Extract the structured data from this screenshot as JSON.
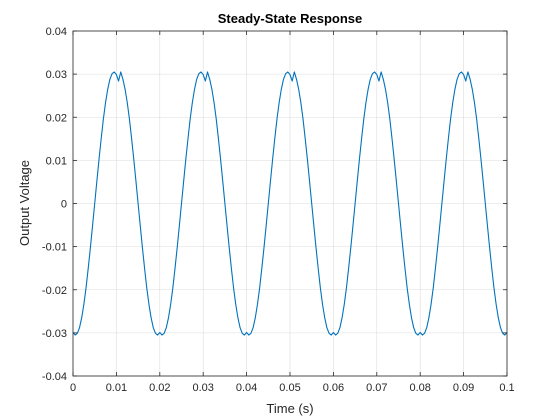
{
  "chart_data": {
    "type": "line",
    "title": "Steady-State Response",
    "xlabel": "Time (s)",
    "ylabel": "Output Voltage",
    "xlim": [
      0,
      0.1
    ],
    "ylim": [
      -0.04,
      0.04
    ],
    "xticks": [
      0,
      0.01,
      0.02,
      0.03,
      0.04,
      0.05,
      0.06,
      0.07,
      0.08,
      0.09,
      0.1
    ],
    "xtick_labels": [
      "0",
      "0.01",
      "0.02",
      "0.03",
      "0.04",
      "0.05",
      "0.06",
      "0.07",
      "0.08",
      "0.09",
      "0.1"
    ],
    "yticks": [
      -0.04,
      -0.03,
      -0.02,
      -0.01,
      0,
      0.01,
      0.02,
      0.03,
      0.04
    ],
    "ytick_labels": [
      "-0.04",
      "-0.03",
      "-0.02",
      "-0.01",
      "0",
      "0.01",
      "0.02",
      "0.03",
      "0.04"
    ],
    "grid": true,
    "series": [
      {
        "color": "#0072BD",
        "x": [
          0,
          0.0005,
          0.001,
          0.0015,
          0.002,
          0.0025,
          0.003,
          0.0035,
          0.004,
          0.0045,
          0.005,
          0.0055,
          0.006,
          0.0065,
          0.007,
          0.0075,
          0.008,
          0.0085,
          0.009,
          0.0095,
          0.01,
          0.0105,
          0.011,
          0.0115,
          0.012,
          0.0125,
          0.013,
          0.0135,
          0.014,
          0.0145,
          0.015,
          0.0155,
          0.016,
          0.0165,
          0.017,
          0.0175,
          0.018,
          0.0185,
          0.019,
          0.0195,
          0.02
        ],
        "y": [
          -0.0299,
          -0.0305,
          -0.0301,
          -0.0288,
          -0.0265,
          -0.0234,
          -0.0196,
          -0.0151,
          -0.0103,
          -0.0052,
          0.0,
          0.0052,
          0.0103,
          0.0151,
          0.0196,
          0.0234,
          0.0265,
          0.0288,
          0.0301,
          0.0305,
          0.0299,
          0.0284,
          0.0305,
          0.0288,
          0.0265,
          0.0234,
          0.0196,
          0.0151,
          0.0103,
          0.0052,
          0.0,
          -0.0052,
          -0.0103,
          -0.0151,
          -0.0196,
          -0.0234,
          -0.0265,
          -0.0288,
          -0.0301,
          -0.0305,
          -0.0299
        ],
        "period": 0.02
      }
    ]
  },
  "colors": {
    "line": "#0072BD",
    "grid": "#dcdcdc",
    "axis": "#262626",
    "background": "#ffffff"
  }
}
